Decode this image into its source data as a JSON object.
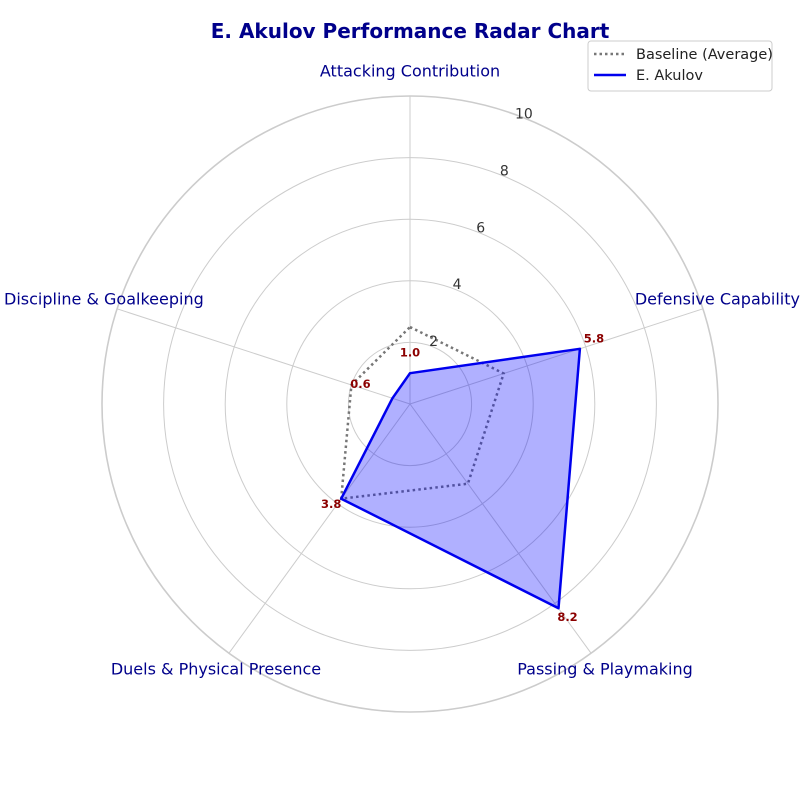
{
  "chart_data": {
    "type": "radar",
    "title": "E. Akulov Performance Radar Chart",
    "categories": [
      "Attacking Contribution",
      "Defensive Capability",
      "Passing & Playmaking",
      "Duels & Physical Presence",
      "Discipline & Goalkeeping"
    ],
    "rlim": [
      0,
      10
    ],
    "r_ticks": [
      2,
      4,
      6,
      8,
      10
    ],
    "series": [
      {
        "name": "Baseline (Average)",
        "values": [
          2.5,
          3.2,
          3.2,
          3.8,
          2.0
        ],
        "style": "dotted",
        "color": "#777777"
      },
      {
        "name": "E. Akulov",
        "values": [
          1.0,
          5.8,
          8.2,
          3.8,
          0.6
        ],
        "style": "solid",
        "color": "#0000ee",
        "fill_color": "#0000ff"
      }
    ],
    "value_labels": [
      "1.0",
      "5.8",
      "8.2",
      "3.8",
      "0.6"
    ],
    "grid": true,
    "legend_position": "top-right",
    "colors": {
      "title": "#00008b",
      "axis_label": "#00008b",
      "value_label": "#8b0000",
      "grid": "#cccccc"
    }
  }
}
